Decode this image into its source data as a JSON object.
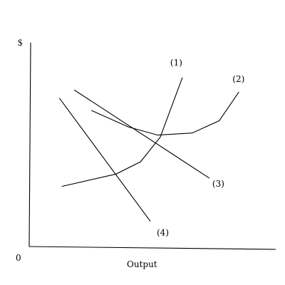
{
  "chart_data": {
    "type": "line",
    "title": "",
    "xlabel": "Output",
    "ylabel": "$",
    "origin_label": "0",
    "xlim": [
      0,
      100
    ],
    "ylim": [
      0,
      100
    ],
    "grid": false,
    "legend": "none",
    "colors": {
      "line": "#000000",
      "background": "#ffffff"
    },
    "series": [
      {
        "label": "(1)",
        "x": [
          13,
          35,
          45,
          53,
          62
        ],
        "y": [
          30,
          36,
          42,
          54,
          83
        ]
      },
      {
        "label": "(2)",
        "x": [
          25,
          40,
          52,
          66,
          77,
          85
        ],
        "y": [
          67,
          59,
          55,
          56,
          62,
          76
        ]
      },
      {
        "label": "(3)",
        "x": [
          18,
          73
        ],
        "y": [
          77,
          34
        ]
      },
      {
        "label": "(4)",
        "x": [
          12,
          49
        ],
        "y": [
          73,
          13
        ]
      }
    ]
  }
}
